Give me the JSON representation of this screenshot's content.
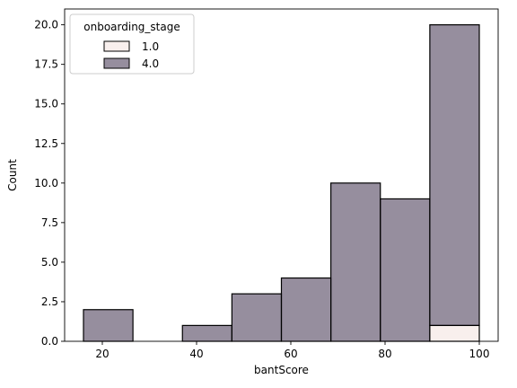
{
  "chart_data": {
    "type": "bar",
    "subtype": "stacked-histogram",
    "title": "",
    "xlabel": "bantScore",
    "ylabel": "Count",
    "xlim": [
      12,
      104
    ],
    "ylim": [
      0,
      21
    ],
    "xticks": [
      20,
      40,
      60,
      80,
      100
    ],
    "yticks": [
      0.0,
      2.5,
      5.0,
      7.5,
      10.0,
      12.5,
      15.0,
      17.5,
      20.0
    ],
    "ytick_labels": [
      "0.0",
      "2.5",
      "5.0",
      "7.5",
      "10.0",
      "12.5",
      "15.0",
      "17.5",
      "20.0"
    ],
    "bin_edges": [
      16,
      26.5,
      37,
      47.5,
      58,
      68.5,
      79,
      89.5,
      100
    ],
    "legend": {
      "title": "onboarding_stage",
      "position": "upper left"
    },
    "series": [
      {
        "name": "1.0",
        "color": "#f2dfdc",
        "values": [
          0,
          0,
          0,
          0,
          0,
          0,
          0,
          1
        ]
      },
      {
        "name": "4.0",
        "color": "#2d1e3e",
        "values": [
          2,
          0,
          1,
          3,
          4,
          10,
          9,
          19
        ]
      }
    ],
    "bar_fill_alpha": 0.5,
    "bar_edge_color": "#000000"
  }
}
